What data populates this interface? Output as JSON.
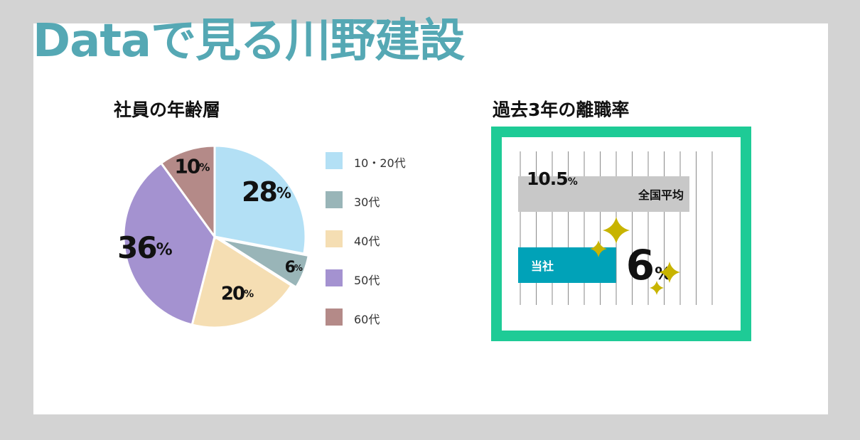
{
  "page": {
    "title": "Dataで見る川野建設"
  },
  "age_chart": {
    "title": "社員の年齢層"
  },
  "turnover_chart": {
    "title": "過去3年の離職率"
  },
  "colors": {
    "title": "#55a8b4",
    "frame": "#1ecb96",
    "national_bar": "#c8c8c8",
    "company_bar": "#00a2b8",
    "sparkle": "#c8b400"
  },
  "chart_data": [
    {
      "type": "pie",
      "title": "社員の年齢層",
      "unit": "%",
      "slices": [
        {
          "label": "10・20代",
          "value": 28,
          "color": "#b3e0f5"
        },
        {
          "label": "30代",
          "value": 6,
          "color": "#99b5b8"
        },
        {
          "label": "40代",
          "value": 20,
          "color": "#f5deb3"
        },
        {
          "label": "50代",
          "value": 36,
          "color": "#a492d0"
        },
        {
          "label": "60代",
          "value": 10,
          "color": "#b48a88"
        }
      ],
      "legend_position": "right"
    },
    {
      "type": "bar",
      "title": "過去3年の離職率",
      "unit": "%",
      "orientation": "horizontal",
      "categories": [
        "全国平均",
        "当社"
      ],
      "values": [
        10.5,
        6
      ],
      "grid": true
    }
  ]
}
